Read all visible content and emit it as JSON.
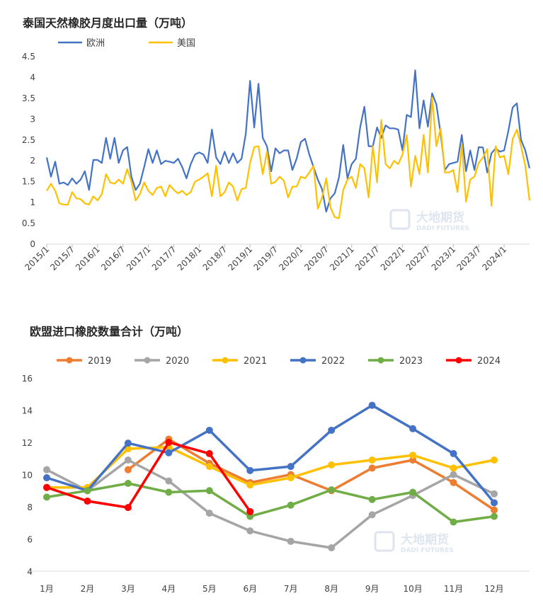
{
  "chart_data": [
    {
      "type": "line",
      "title": "泰国天然橡胶月度出口量（万吨）",
      "x_tick_labels": [
        "2015/1",
        "2015/7",
        "2016/1",
        "2016/7",
        "2017/1",
        "2017/7",
        "2018/1",
        "2018/7",
        "2019/1",
        "2019/7",
        "2020/1",
        "2020/7",
        "2021/1",
        "2021/7",
        "2022/1",
        "2022/7",
        "2023/1",
        "2023/7",
        "2024/1"
      ],
      "y_tick_labels": [
        "0",
        "0.5",
        "1",
        "1.5",
        "2",
        "2.5",
        "3",
        "3.5",
        "4",
        "4.5"
      ],
      "ylim": [
        0,
        4.5
      ],
      "x_start": "2015/1",
      "grid": false,
      "legend": "top-left",
      "watermark": "大地期货 DADI FUTURES",
      "series": [
        {
          "name": "欧洲",
          "color": "#4472C4",
          "values": [
            2.08,
            1.62,
            1.98,
            1.45,
            1.48,
            1.42,
            1.58,
            1.45,
            1.55,
            1.75,
            1.3,
            2.02,
            2.02,
            1.95,
            2.55,
            2.05,
            2.55,
            1.95,
            2.25,
            2.33,
            1.62,
            1.3,
            1.45,
            1.85,
            2.28,
            1.95,
            2.25,
            1.92,
            2.0,
            1.98,
            1.95,
            2.05,
            1.85,
            1.58,
            1.92,
            2.15,
            2.2,
            2.15,
            1.95,
            2.75,
            2.08,
            1.92,
            2.22,
            1.95,
            2.18,
            1.95,
            2.05,
            2.65,
            3.92,
            2.8,
            3.85,
            2.55,
            2.35,
            1.75,
            2.3,
            2.18,
            2.25,
            2.25,
            1.78,
            2.05,
            2.45,
            2.53,
            2.15,
            1.85,
            1.55,
            1.32,
            0.78,
            1.1,
            1.22,
            1.6,
            2.38,
            1.58,
            1.92,
            2.05,
            2.8,
            3.3,
            2.35,
            2.35,
            2.8,
            2.55,
            2.85,
            2.78,
            2.78,
            2.75,
            2.25,
            3.1,
            3.05,
            4.17,
            2.78,
            3.45,
            2.82,
            3.62,
            3.35,
            2.65,
            1.78,
            1.92,
            1.95,
            1.98,
            2.62,
            1.75,
            2.25,
            1.78,
            2.33,
            2.32,
            1.72,
            2.18,
            2.3,
            2.22,
            2.25,
            2.72,
            3.28,
            3.38,
            2.5,
            2.25,
            1.82
          ]
        },
        {
          "name": "美国",
          "color": "#FFC000",
          "values": [
            1.28,
            1.45,
            1.28,
            0.98,
            0.95,
            0.95,
            1.25,
            1.1,
            1.08,
            0.98,
            0.95,
            1.15,
            1.05,
            1.2,
            1.68,
            1.48,
            1.45,
            1.55,
            1.45,
            1.8,
            1.5,
            1.05,
            1.2,
            1.48,
            1.28,
            1.18,
            1.35,
            1.38,
            1.15,
            1.42,
            1.3,
            1.22,
            1.28,
            1.18,
            1.25,
            1.5,
            1.55,
            1.62,
            1.7,
            1.15,
            1.88,
            1.15,
            1.25,
            1.48,
            1.38,
            1.05,
            1.32,
            1.35,
            1.95,
            2.33,
            2.35,
            1.68,
            2.22,
            1.45,
            1.5,
            1.62,
            1.52,
            1.12,
            1.38,
            1.38,
            1.62,
            1.58,
            1.72,
            1.88,
            0.85,
            1.12,
            1.58,
            0.88,
            0.65,
            0.62,
            1.3,
            1.55,
            1.62,
            1.35,
            1.92,
            1.82,
            1.12,
            2.35,
            1.48,
            2.98,
            1.92,
            1.82,
            2.0,
            1.92,
            2.15,
            2.62,
            1.38,
            2.12,
            1.68,
            2.62,
            1.72,
            3.52,
            2.35,
            2.78,
            1.72,
            1.72,
            1.78,
            1.25,
            2.38,
            1.02,
            1.55,
            1.62,
            1.95,
            2.08,
            2.28,
            0.92,
            2.35,
            2.08,
            2.12,
            1.68,
            2.52,
            2.75,
            2.35,
            1.88,
            1.05
          ]
        }
      ]
    },
    {
      "type": "line",
      "title": "欧盟进口橡胶数量合计（万吨）",
      "categories": [
        "1月",
        "2月",
        "3月",
        "4月",
        "5月",
        "6月",
        "7月",
        "8月",
        "9月",
        "10月",
        "11月",
        "12月"
      ],
      "y_tick_labels": [
        "4",
        "6",
        "8",
        "10",
        "12",
        "14",
        "16"
      ],
      "ylim": [
        4,
        16
      ],
      "grid": false,
      "legend": "top",
      "watermark": "大地期货 DADI FUTURES",
      "series": [
        {
          "name": "2019",
          "color": "#ED7D31",
          "values": [
            null,
            null,
            10.3,
            12.2,
            10.7,
            9.5,
            10.0,
            9.0,
            10.4,
            10.9,
            9.5,
            7.8
          ]
        },
        {
          "name": "2020",
          "color": "#A5A5A5",
          "values": [
            10.3,
            9.0,
            10.9,
            9.6,
            7.6,
            6.5,
            5.85,
            5.45,
            7.5,
            8.7,
            10.0,
            8.8
          ]
        },
        {
          "name": "2021",
          "color": "#FFC000",
          "values": [
            9.2,
            9.2,
            11.6,
            11.7,
            10.5,
            9.35,
            9.8,
            10.6,
            10.9,
            11.2,
            10.4,
            10.9
          ]
        },
        {
          "name": "2022",
          "color": "#4472C4",
          "values": [
            9.8,
            9.0,
            11.95,
            11.35,
            12.75,
            10.25,
            10.5,
            12.75,
            14.3,
            12.85,
            11.3,
            8.25
          ]
        },
        {
          "name": "2023",
          "color": "#70AD47",
          "values": [
            8.6,
            9.0,
            9.45,
            8.9,
            9.0,
            7.4,
            8.1,
            9.05,
            8.45,
            8.9,
            7.05,
            7.4
          ]
        },
        {
          "name": "2024",
          "color": "#FF0000",
          "values": [
            9.2,
            8.35,
            7.95,
            12.0,
            11.3,
            7.7,
            null,
            null,
            null,
            null,
            null,
            null
          ]
        }
      ]
    }
  ]
}
